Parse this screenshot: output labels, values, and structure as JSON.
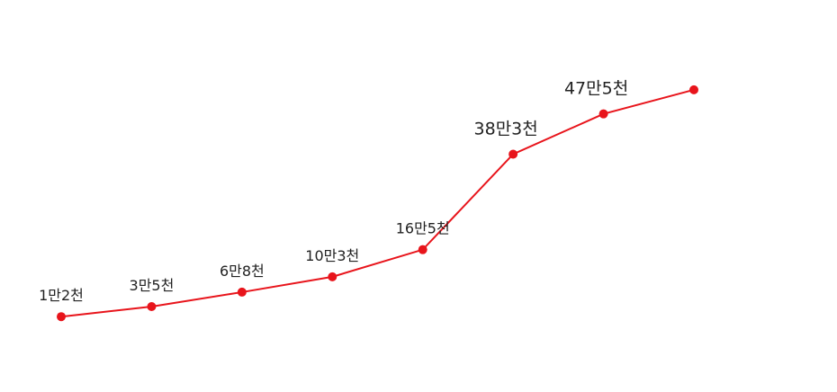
{
  "chart_data": {
    "type": "line",
    "categories": [
      null,
      null,
      null,
      null,
      null,
      null,
      null,
      null
    ],
    "series": [
      {
        "color": "#e8141b",
        "values": [
          12000,
          35000,
          68000,
          103000,
          165000,
          383000,
          475000,
          530000
        ],
        "value_labels": [
          "1만2천",
          "3만5천",
          "6만8천",
          "10만3천",
          "16만5천",
          "38만3천",
          "47만5천",
          null
        ]
      }
    ],
    "ylim": [
      -160000,
      735000
    ]
  }
}
